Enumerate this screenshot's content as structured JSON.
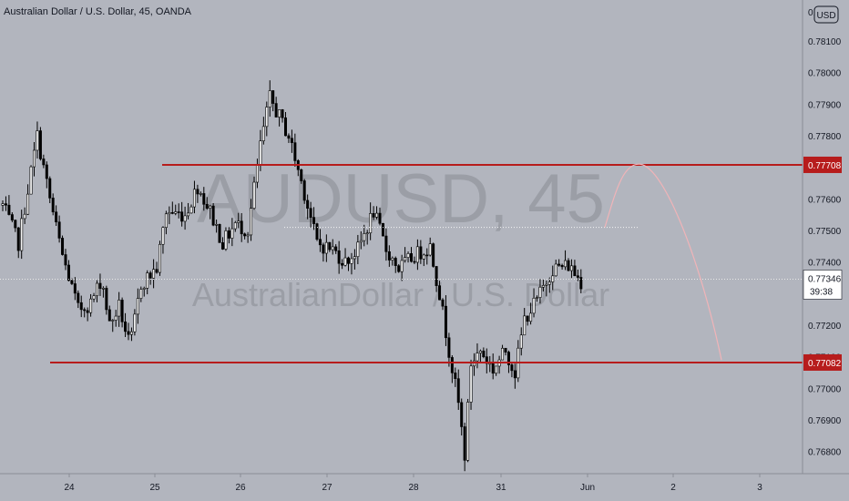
{
  "header": {
    "title": "Australian Dollar / U.S. Dollar, 45, OANDA",
    "currency_badge": "USD"
  },
  "watermark": {
    "symbol": "AUDUSD, 45",
    "description": "AustralianDollar / U.S. Dollar"
  },
  "chart_data": {
    "type": "candlestick",
    "title": "Australian Dollar / U.S. Dollar, 45, OANDA",
    "price_axis": {
      "range": [
        0.7673,
        0.7823
      ],
      "tick_values": [
        0.781,
        0.78,
        0.779,
        0.778,
        0.777,
        0.776,
        0.775,
        0.774,
        0.772,
        0.771,
        0.77,
        0.769,
        0.768
      ],
      "tick_labels": [
        "0.78100",
        "0.78000",
        "0.77900",
        "0.77800",
        "0.77700",
        "0.77600",
        "0.77500",
        "0.77400",
        "0.77200",
        "0.77100",
        "0.77000",
        "0.76900",
        "0.76800"
      ],
      "partial_top_label": "0."
    },
    "time_axis": {
      "labels": [
        "24",
        "25",
        "26",
        "27",
        "28",
        "31",
        "Jun",
        "2",
        "3"
      ]
    },
    "levels": [
      {
        "name": "resistance",
        "price": 0.77708,
        "label": "0.77708",
        "color": "#b71c1c"
      },
      {
        "name": "support",
        "price": 0.77082,
        "label": "0.77082",
        "color": "#b71c1c"
      }
    ],
    "last_price": {
      "value": 0.77346,
      "label": "0.77346",
      "countdown": "39:38"
    },
    "dotted_level": {
      "price": 0.7751
    },
    "projection": {
      "color": "#f0b4b8",
      "peak_price": 0.7771,
      "end_price": 0.7709
    },
    "series": [
      {
        "name": "candles",
        "anchors": [
          {
            "x": 0.0,
            "price": 0.7758
          },
          {
            "x": 5.0,
            "price": 0.7746
          },
          {
            "x": 11.0,
            "price": 0.778
          },
          {
            "x": 15.0,
            "price": 0.776
          },
          {
            "x": 19.0,
            "price": 0.7742
          },
          {
            "x": 24.0,
            "price": 0.7725
          },
          {
            "x": 28.0,
            "price": 0.7727
          },
          {
            "x": 31.5,
            "price": 0.7735
          },
          {
            "x": 34.0,
            "price": 0.772
          },
          {
            "x": 37.0,
            "price": 0.7726
          },
          {
            "x": 40.5,
            "price": 0.7713
          },
          {
            "x": 44.0,
            "price": 0.7733
          },
          {
            "x": 49.0,
            "price": 0.7738
          },
          {
            "x": 52.0,
            "price": 0.7756
          },
          {
            "x": 58.0,
            "price": 0.7755
          },
          {
            "x": 62.0,
            "price": 0.7764
          },
          {
            "x": 66.0,
            "price": 0.7756
          },
          {
            "x": 70.0,
            "price": 0.7746
          },
          {
            "x": 74.0,
            "price": 0.7752
          },
          {
            "x": 78.0,
            "price": 0.775
          },
          {
            "x": 82.0,
            "price": 0.7777
          },
          {
            "x": 85.0,
            "price": 0.7792
          },
          {
            "x": 91.0,
            "price": 0.778
          },
          {
            "x": 96.0,
            "price": 0.7762
          },
          {
            "x": 100.0,
            "price": 0.7746
          },
          {
            "x": 105.0,
            "price": 0.7744
          },
          {
            "x": 109.0,
            "price": 0.774
          },
          {
            "x": 113.0,
            "price": 0.7744
          },
          {
            "x": 118.0,
            "price": 0.7756
          },
          {
            "x": 122.0,
            "price": 0.7744
          },
          {
            "x": 126.0,
            "price": 0.7738
          },
          {
            "x": 131.0,
            "price": 0.7742
          },
          {
            "x": 136.0,
            "price": 0.7745
          },
          {
            "x": 139.0,
            "price": 0.773
          },
          {
            "x": 141.0,
            "price": 0.7718
          },
          {
            "x": 145.0,
            "price": 0.7695
          },
          {
            "x": 147.0,
            "price": 0.7679
          },
          {
            "x": 149.0,
            "price": 0.7708
          },
          {
            "x": 152.0,
            "price": 0.7712
          },
          {
            "x": 156.0,
            "price": 0.7706
          },
          {
            "x": 160.0,
            "price": 0.7712
          },
          {
            "x": 163.0,
            "price": 0.7705
          },
          {
            "x": 166.0,
            "price": 0.7722
          },
          {
            "x": 170.0,
            "price": 0.7728
          },
          {
            "x": 175.0,
            "price": 0.7738
          },
          {
            "x": 180.0,
            "price": 0.7739
          },
          {
            "x": 184.0,
            "price": 0.7734
          }
        ]
      }
    ]
  }
}
